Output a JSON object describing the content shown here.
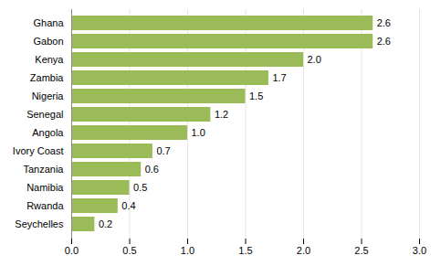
{
  "chart_data": {
    "type": "bar",
    "orientation": "horizontal",
    "categories": [
      "Ghana",
      "Gabon",
      "Kenya",
      "Zambia",
      "Nigeria",
      "Senegal",
      "Angola",
      "Ivory Coast",
      "Tanzania",
      "Namibia",
      "Rwanda",
      "Seychelles"
    ],
    "values": [
      2.6,
      2.6,
      2.0,
      1.7,
      1.5,
      1.2,
      1.0,
      0.7,
      0.6,
      0.5,
      0.4,
      0.2
    ],
    "value_labels": [
      "2.6",
      "2.6",
      "2.0",
      "1.7",
      "1.5",
      "1.2",
      "1.0",
      "0.7",
      "0.6",
      "0.5",
      "0.4",
      "0.2"
    ],
    "data_labels": true,
    "color": "#9BBB59",
    "xlim": [
      0,
      3.0
    ],
    "xticks": [
      {
        "value": 0,
        "label": "0.0"
      },
      0.5,
      {
        "value": 1,
        "label": "1.0"
      },
      1.5,
      {
        "value": 2,
        "label": "2.0"
      },
      2.5,
      {
        "value": 3,
        "label": "3.0"
      }
    ],
    "grid": true
  }
}
